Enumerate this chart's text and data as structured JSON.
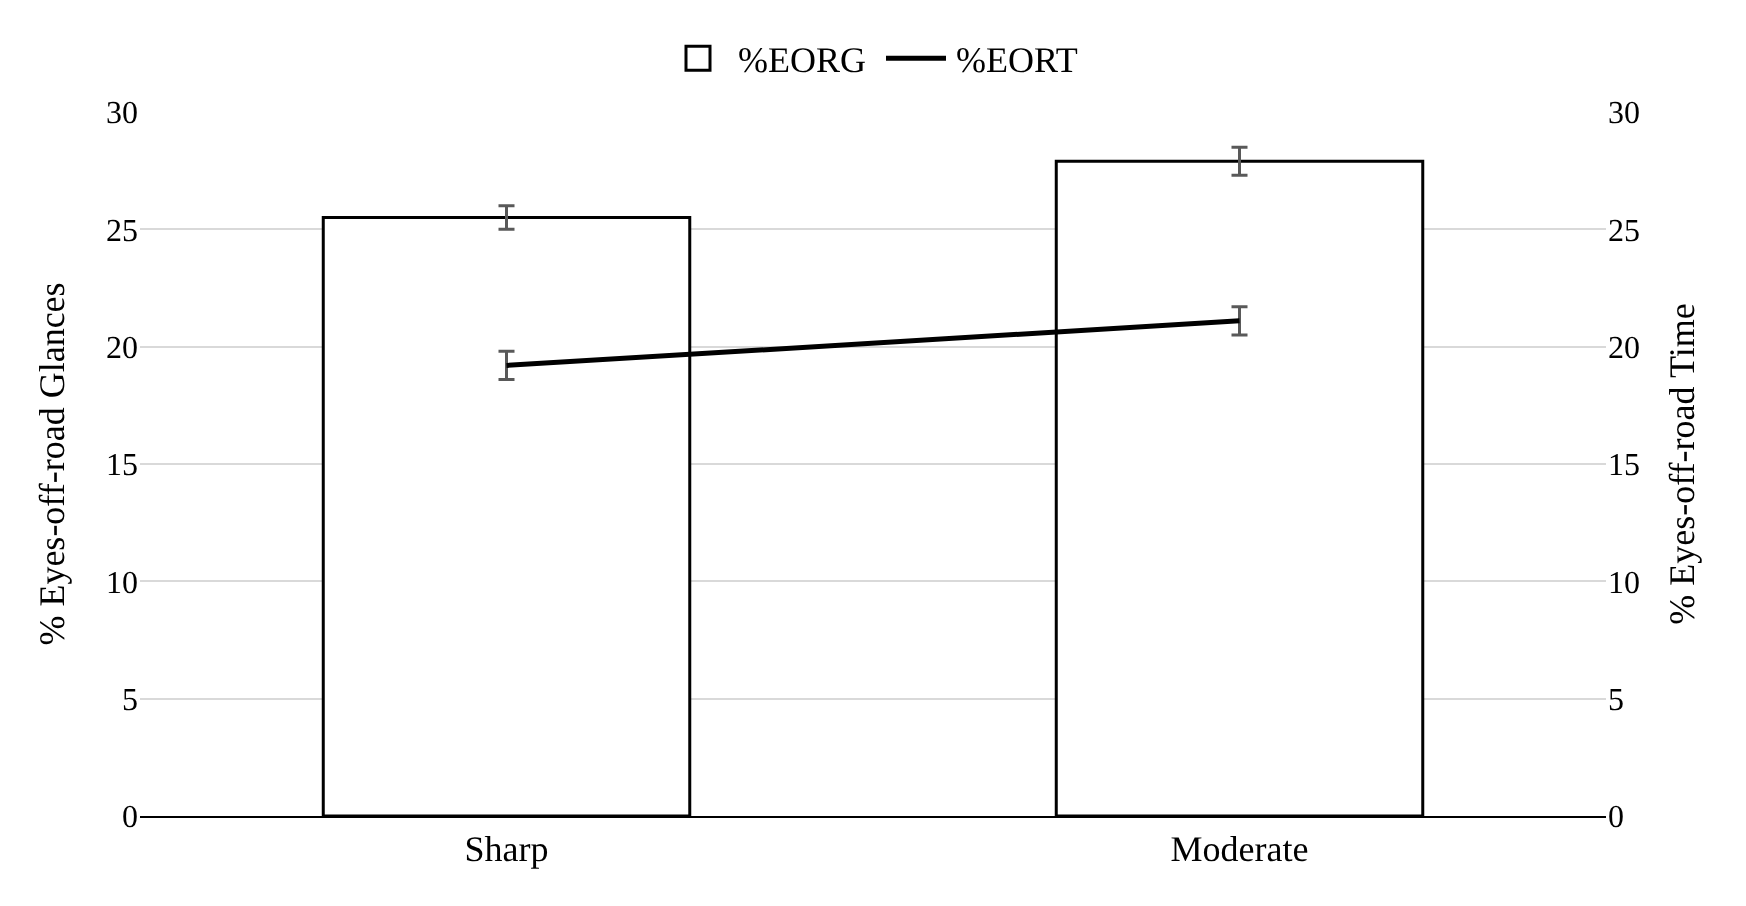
{
  "chart_data": {
    "type": "bar",
    "ylabel": "% Eyes-off-road Glances",
    "y2label": "% Eyes-off-road Time",
    "categories": [
      "Sharp",
      "Moderate"
    ],
    "series": [
      {
        "name": "%EORG",
        "color": "#ffffff",
        "values": [
          25.5,
          27.9
        ],
        "errors": [
          0.5,
          0.6
        ]
      },
      {
        "name": "%EORT",
        "type": "line",
        "axis": "y2",
        "color": "#000000",
        "values": [
          19.2,
          21.1
        ],
        "errors": [
          0.6,
          0.6
        ]
      }
    ],
    "ylim": [
      0,
      30
    ],
    "yticks": [
      0,
      5,
      10,
      15,
      20,
      25,
      30
    ],
    "y2lim": [
      0,
      30
    ],
    "y2ticks": [
      0,
      5,
      10,
      15,
      20,
      25,
      30
    ],
    "grid": "y",
    "legend": "top",
    "marker": "none",
    "line_style": "solid"
  }
}
